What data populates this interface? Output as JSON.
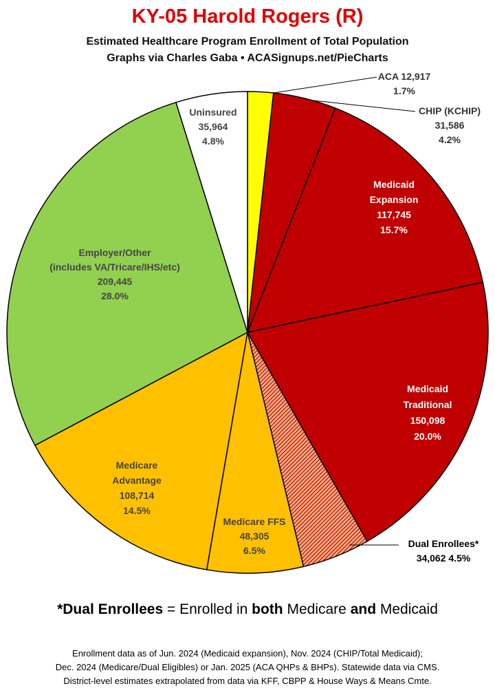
{
  "header": {
    "title": "KY-05 Harold Rogers (R)",
    "subtitle1": "Estimated Healthcare Program Enrollment of Total Population",
    "subtitle2": "Graphs via Charles Gaba  •  ACASignups.net/PieCharts"
  },
  "chart_data": {
    "type": "pie",
    "title": "KY-05 Harold Rogers (R)",
    "slices": [
      {
        "name": "ACA",
        "value": 12917,
        "percent": "1.7%",
        "color": "#ffff00",
        "label_lines": [
          "ACA 12,917",
          "1.7%"
        ]
      },
      {
        "name": "CHIP (KCHIP)",
        "value": 31586,
        "percent": "4.2%",
        "color": "#c00000",
        "label_lines": [
          "CHIP (KCHIP)",
          "31,586",
          "4.2%"
        ]
      },
      {
        "name": "Medicaid Expansion",
        "value": 117745,
        "percent": "15.7%",
        "color": "#c00000",
        "label_lines": [
          "Medicaid",
          "Expansion",
          "117,745",
          "15.7%"
        ]
      },
      {
        "name": "Medicaid Traditional",
        "value": 150098,
        "percent": "20.0%",
        "color": "#c00000",
        "label_lines": [
          "Medicaid",
          "Traditional",
          "150,098",
          "20.0%"
        ]
      },
      {
        "name": "Dual Enrollees*",
        "value": 34062,
        "percent": "4.5%",
        "color": "#c00000",
        "pattern": "hatched",
        "label_lines": [
          "Dual Enrollees*",
          "34,062 4.5%"
        ]
      },
      {
        "name": "Medicare FFS",
        "value": 48305,
        "percent": "6.5%",
        "color": "#ffc000",
        "label_lines": [
          "Medicare FFS",
          "48,305",
          "6.5%"
        ]
      },
      {
        "name": "Medicare Advantage",
        "value": 108714,
        "percent": "14.5%",
        "color": "#ffc000",
        "label_lines": [
          "Medicare",
          "Advantage",
          "108,714",
          "14.5%"
        ]
      },
      {
        "name": "Employer/Other",
        "value": 209445,
        "percent": "28.0%",
        "color": "#92d050",
        "label_lines": [
          "Employer/Other",
          "(includes VA/Tricare/IHS/etc)",
          "209,445",
          "28.0%"
        ]
      },
      {
        "name": "Uninsured",
        "value": 35964,
        "percent": "4.8%",
        "color": "#ffffff",
        "label_lines": [
          "Uninsured",
          "35,964",
          "4.8%"
        ]
      }
    ]
  },
  "definition": {
    "prefix": "*",
    "term": "Dual Enrollees",
    "eq": " = Enrolled in ",
    "both": "both",
    "medicare": " Medicare ",
    "and": "and",
    "medicaid": " Medicaid"
  },
  "footer": {
    "line1": "Enrollment data as of Jun. 2024 (Medicaid expansion), Nov. 2024 (CHIP/Total Medicaid);",
    "line2": "Dec. 2024 (Medicare/Dual Eligibles) or Jan. 2025 (ACA QHPs & BHPs). Statewide data via CMS.",
    "line3": "District-level estimates extrapolated from data via KFF, CBPP & House Ways & Means Cmte."
  }
}
